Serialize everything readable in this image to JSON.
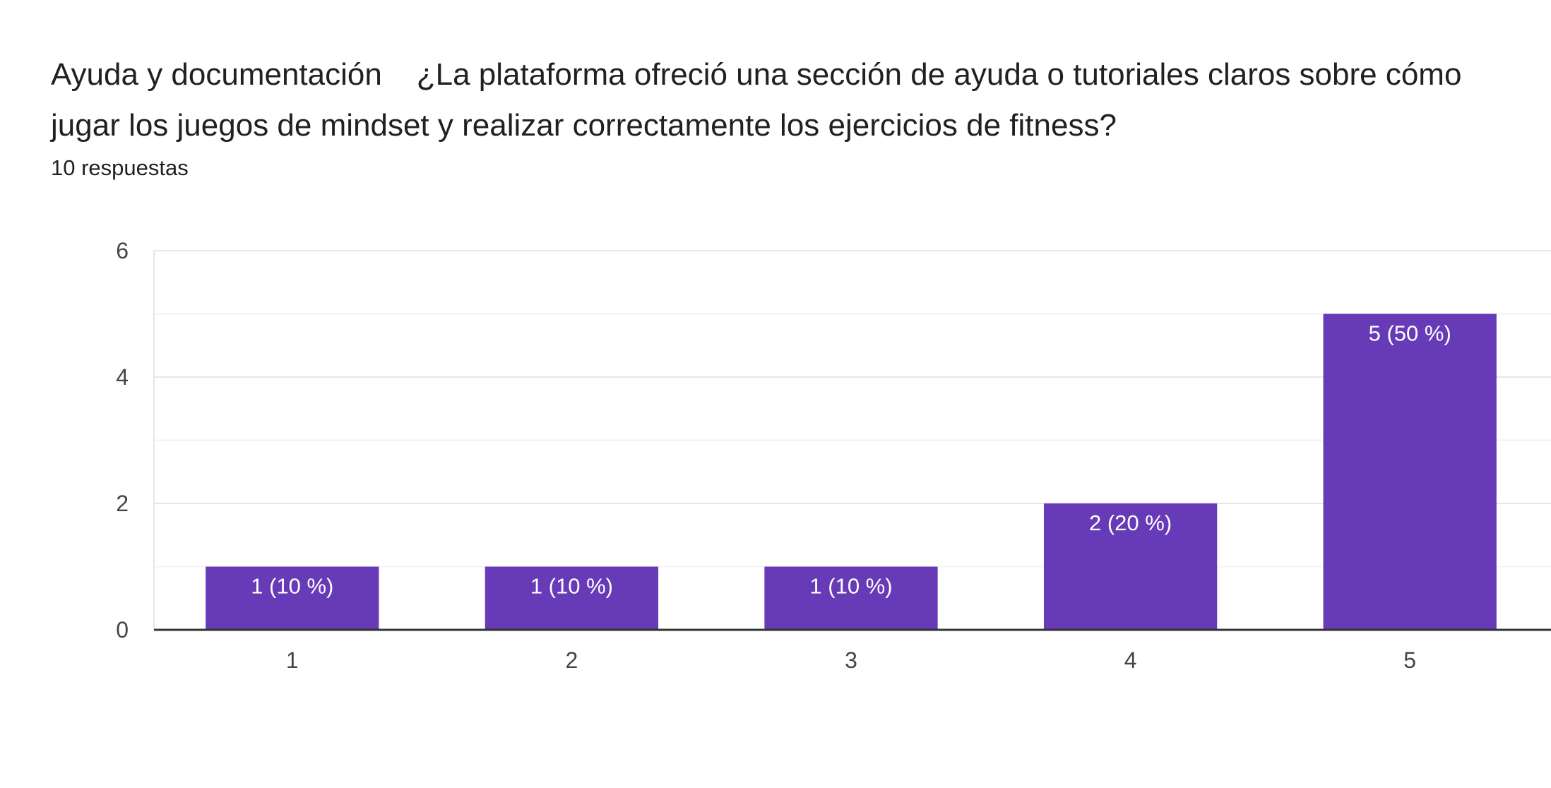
{
  "header": {
    "title": "Ayuda y documentación    ¿La plataforma ofreció una sección de ayuda o tutoriales claros sobre cómo jugar los juegos de mindset y realizar correctamente los ejercicios de fitness?",
    "responses": "10 respuestas"
  },
  "chart_data": {
    "type": "bar",
    "categories": [
      "1",
      "2",
      "3",
      "4",
      "5"
    ],
    "values": [
      1,
      1,
      1,
      2,
      5
    ],
    "data_labels": [
      "1 (10 %)",
      "1 (10 %)",
      "1 (10 %)",
      "2 (20 %)",
      "5 (50 %)"
    ],
    "yticks": [
      0,
      2,
      4,
      6
    ],
    "ylim": [
      0,
      6
    ],
    "grid": true,
    "bar_color": "#673ab7",
    "xlabel": "",
    "ylabel": ""
  }
}
